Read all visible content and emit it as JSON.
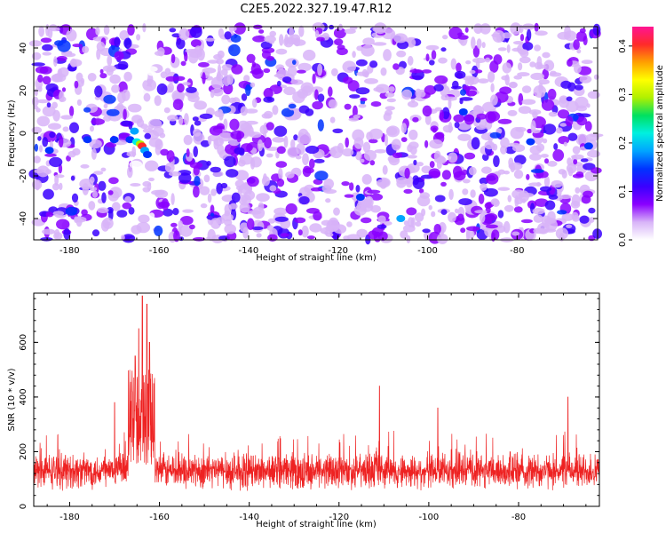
{
  "title": "C2E5.2022.327.19.47.R12",
  "chart_data": [
    {
      "type": "heatmap",
      "xlabel": "Height of straight line (km)",
      "ylabel": "Frequency (Hz)",
      "xlim": [
        -188,
        -62
      ],
      "ylim": [
        -50,
        50
      ],
      "xticks": [
        -180,
        -160,
        -140,
        -120,
        -100,
        -80
      ],
      "yticks": [
        -40,
        -20,
        0,
        20,
        40
      ],
      "colorbar": {
        "label": "Normalized spectral amplitude",
        "range": [
          0.0,
          0.44
        ],
        "ticks": [
          "0.0",
          "0.1",
          "0.2",
          "0.3",
          "0.4"
        ],
        "colors": [
          "#ffffff",
          "#d8b4f8",
          "#8a00ff",
          "#3a00ff",
          "#0033ff",
          "#00a5ff",
          "#00f0e0",
          "#00e060",
          "#b0f000",
          "#ffff00",
          "#ffa000",
          "#ff2a2a",
          "#ff1493"
        ]
      },
      "features": [
        {
          "x_range": [
            -167,
            -162
          ],
          "freq_range": [
            -10,
            2
          ],
          "peak_value": 0.42,
          "note": "strong spectral peak near -164 km, 0 Hz"
        },
        {
          "x_range": [
            -166,
            -161
          ],
          "note": "low-amplitude vertical band"
        }
      ]
    },
    {
      "type": "line",
      "xlabel": "Height of straight line (km)",
      "ylabel": "SNR (10 * v/v)",
      "xlim": [
        -188,
        -62
      ],
      "ylim": [
        0,
        780
      ],
      "xticks": [
        -180,
        -160,
        -140,
        -120,
        -100,
        -80
      ],
      "yticks": [
        0,
        200,
        400,
        600
      ],
      "series": [
        {
          "color": "#ee2222",
          "baseline_mean": 130,
          "baseline_spread": [
            40,
            260
          ],
          "peaks": [
            {
              "x": -163.8,
              "y": 770
            },
            {
              "x": -162.8,
              "y": 740
            },
            {
              "x": -164.6,
              "y": 650
            },
            {
              "x": -162.2,
              "y": 600
            },
            {
              "x": -165.4,
              "y": 550
            },
            {
              "x": -111.0,
              "y": 440
            },
            {
              "x": -69.0,
              "y": 400
            },
            {
              "x": -170.0,
              "y": 380
            },
            {
              "x": -98.0,
              "y": 360
            }
          ]
        }
      ]
    }
  ]
}
